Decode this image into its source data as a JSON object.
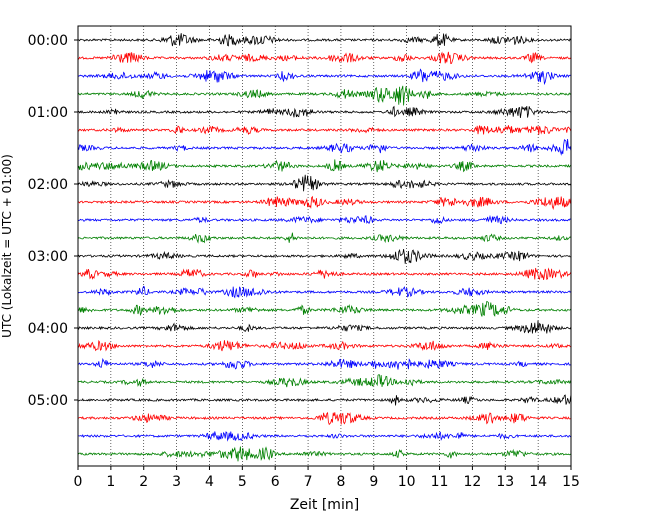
{
  "chart_data": {
    "type": "line",
    "title": "",
    "xlabel": "Zeit  [min]",
    "ylabel": "UTC (Lokalzeit = UTC + 01:00)",
    "xlim": [
      0,
      15
    ],
    "x_ticks": [
      "0",
      "1",
      "2",
      "3",
      "4",
      "5",
      "6",
      "7",
      "8",
      "9",
      "10",
      "11",
      "12",
      "13",
      "14",
      "15"
    ],
    "y_ticks": [
      "00:00",
      "01:00",
      "02:00",
      "03:00",
      "04:00",
      "05:00"
    ],
    "grid": "vertical-dotted",
    "trace_interval_min": 15,
    "trace_count": 24,
    "trace_colors": [
      "#000000",
      "#ff0000",
      "#0000ff",
      "#008000"
    ]
  }
}
